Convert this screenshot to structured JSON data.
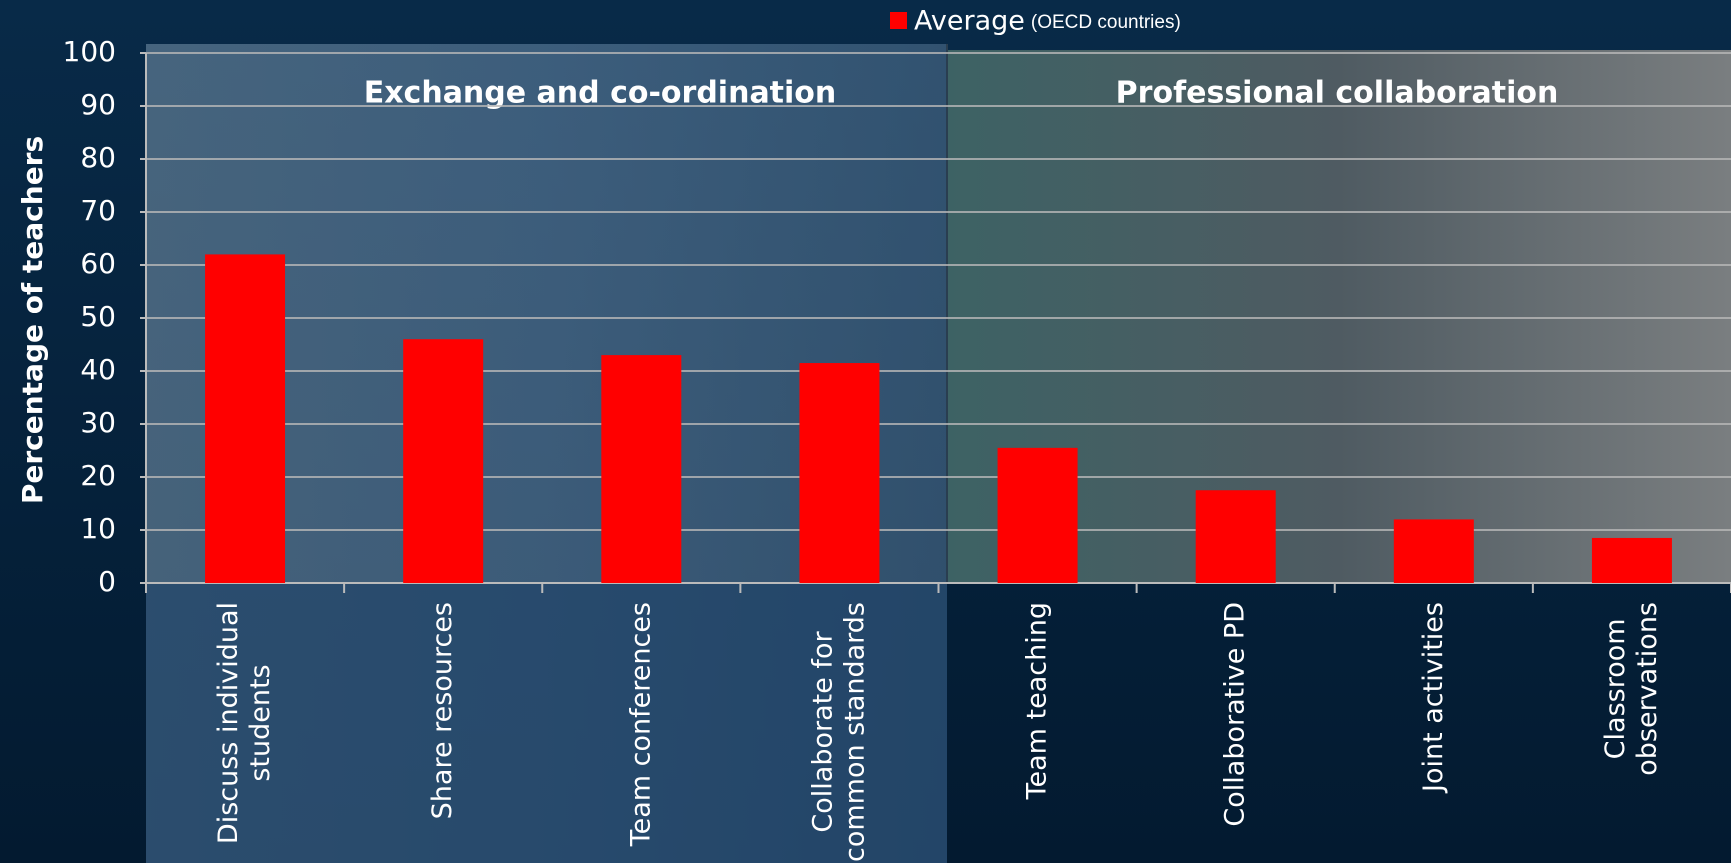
{
  "chart_data": {
    "type": "bar",
    "y_label": "Percentage of teachers",
    "group_labels": [
      "Exchange and co-ordination",
      "Professional collaboration"
    ],
    "categories": [
      "Discuss individual students",
      "Share resources",
      "Team conferences",
      "Collaborate for common standards",
      "Team teaching",
      "Collaborative PD",
      "Joint activities",
      "Classroom observations"
    ],
    "series": [
      {
        "name": "Average",
        "color": "#ff0000",
        "values": [
          62,
          46,
          43,
          41.5,
          25.5,
          17.5,
          12,
          8.5
        ]
      }
    ],
    "legend_note": "(OECD countries)",
    "legend": "top",
    "ylim": [
      0,
      100
    ],
    "yticks": [
      0,
      10,
      20,
      30,
      40,
      50,
      60,
      70,
      80,
      90,
      100
    ],
    "grid": true
  }
}
